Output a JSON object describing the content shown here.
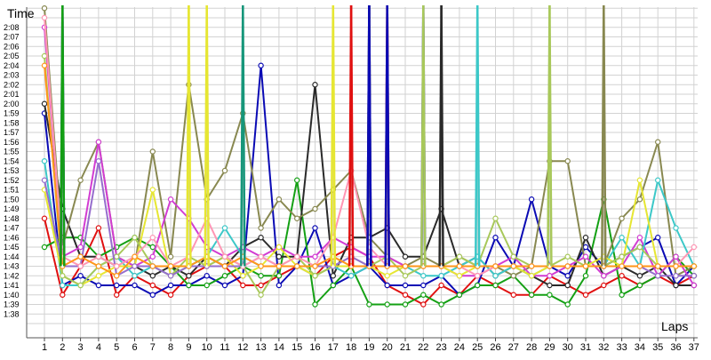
{
  "chart_data": {
    "type": "line",
    "ylabel": "Time",
    "xlabel": "Laps",
    "x": [
      1,
      2,
      3,
      4,
      5,
      6,
      7,
      8,
      9,
      10,
      11,
      12,
      13,
      14,
      15,
      16,
      17,
      18,
      19,
      20,
      21,
      22,
      23,
      24,
      25,
      26,
      27,
      28,
      29,
      30,
      31,
      32,
      33,
      34,
      35,
      36,
      37
    ],
    "y_ticks": [
      "1:38",
      "1:39",
      "1:40",
      "1:41",
      "1:42",
      "1:43",
      "1:44",
      "1:45",
      "1:46",
      "1:47",
      "1:48",
      "1:49",
      "1:50",
      "1:51",
      "1:52",
      "1:53",
      "1:54",
      "1:55",
      "1:56",
      "1:57",
      "1:58",
      "1:59",
      "2:00",
      "2:01",
      "2:02",
      "2:03",
      "2:04",
      "2:05",
      "2:06",
      "2:07",
      "2:08"
    ],
    "ylim_seconds": [
      97.5,
      134.5
    ],
    "xlim": [
      1,
      37
    ],
    "grid": true,
    "legend": "none",
    "series": [
      {
        "color": "#e01010",
        "values": [
          108,
          100,
          103,
          107,
          100,
          102,
          101,
          100,
          102,
          103,
          103,
          101,
          101,
          102,
          103,
          102,
          104,
          105,
          104,
          101,
          100,
          99,
          101,
          100,
          102,
          101,
          100,
          100,
          102,
          101,
          100,
          101,
          102,
          101,
          102,
          101,
          102
        ]
      },
      {
        "color": "#0a0ab4",
        "values": [
          119,
          101,
          102,
          101,
          101,
          101,
          100,
          101,
          101,
          102,
          101,
          102,
          124,
          101,
          103,
          107,
          101,
          102,
          103,
          101,
          101,
          101,
          102,
          100,
          101,
          106,
          103,
          110,
          103,
          102,
          105,
          103,
          104,
          105,
          106,
          101,
          103
        ]
      },
      {
        "color": "#14a014",
        "values": [
          105,
          106,
          106,
          104,
          105,
          106,
          105,
          103,
          101,
          101,
          102,
          103,
          102,
          102,
          112,
          99,
          101,
          103,
          99,
          99,
          99,
          100,
          99,
          100,
          101,
          101,
          102,
          100,
          100,
          99,
          102,
          110,
          100,
          101,
          102,
          104,
          102
        ]
      },
      {
        "color": "#2a2a2a",
        "values": [
          120,
          109,
          104,
          104,
          103,
          103,
          102,
          103,
          102,
          104,
          103,
          105,
          106,
          104,
          104,
          122,
          102,
          106,
          106,
          107,
          104,
          104,
          109,
          103,
          104,
          102,
          103,
          102,
          101,
          101,
          106,
          102,
          103,
          102,
          103,
          101,
          101
        ]
      },
      {
        "color": "#888850",
        "values": [
          130,
          105,
          112,
          116,
          104,
          103,
          115,
          104,
          122,
          110,
          113,
          119,
          107,
          110,
          108,
          109,
          111,
          113,
          106,
          104,
          103,
          104,
          103,
          104,
          103,
          103,
          102,
          103,
          114,
          114,
          103,
          103,
          108,
          110,
          116,
          102,
          103
        ]
      },
      {
        "color": "#d23cd2",
        "values": [
          128,
          104,
          105,
          116,
          104,
          103,
          104,
          110,
          108,
          105,
          104,
          105,
          104,
          105,
          104,
          104,
          106,
          105,
          104,
          104,
          103,
          103,
          103,
          102,
          102,
          103,
          104,
          102,
          102,
          103,
          104,
          102,
          103,
          106,
          102,
          104,
          101
        ]
      },
      {
        "color": "#3cc8c8",
        "values": [
          114,
          101,
          101,
          103,
          104,
          102,
          103,
          102,
          103,
          104,
          107,
          104,
          103,
          103,
          103,
          102,
          103,
          102,
          103,
          103,
          103,
          102,
          102,
          103,
          104,
          102,
          103,
          102,
          103,
          103,
          103,
          103,
          106,
          103,
          112,
          107,
          103
        ]
      },
      {
        "color": "#e6e632",
        "values": [
          111,
          102,
          101,
          102,
          103,
          103,
          111,
          102,
          103,
          103,
          104,
          102,
          103,
          105,
          103,
          102,
          103,
          103,
          103,
          102,
          103,
          103,
          103,
          102,
          103,
          103,
          103,
          102,
          103,
          103,
          103,
          104,
          103,
          112,
          103,
          103,
          103
        ]
      },
      {
        "color": "#a8c85a",
        "values": [
          125,
          102,
          101,
          103,
          104,
          106,
          103,
          102,
          104,
          103,
          104,
          103,
          100,
          103,
          104,
          102,
          103,
          104,
          103,
          104,
          102,
          103,
          103,
          104,
          103,
          108,
          104,
          103,
          103,
          104,
          103,
          103,
          104,
          105,
          103,
          103,
          103
        ]
      },
      {
        "color": "#966ecd",
        "values": [
          112,
          103,
          103,
          114,
          102,
          103,
          103,
          102,
          103,
          103,
          103,
          103,
          104,
          103,
          103,
          103,
          103,
          104,
          103,
          103,
          103,
          103,
          103,
          103,
          103,
          103,
          103,
          103,
          103,
          103,
          103,
          103,
          103,
          103,
          102,
          102,
          102
        ]
      },
      {
        "color": "#ff96b4",
        "values": [
          129,
          104,
          103,
          104,
          103,
          104,
          106,
          103,
          104,
          108,
          104,
          103,
          104,
          103,
          104,
          103,
          106,
          113,
          105,
          103,
          103,
          103,
          103,
          103,
          102,
          103,
          103,
          103,
          103,
          103,
          103,
          103,
          103,
          103,
          103,
          103,
          105
        ]
      },
      {
        "color": "#ff9619",
        "values": [
          124,
          103,
          104,
          103,
          102,
          104,
          103,
          103,
          103,
          104,
          103,
          104,
          103,
          103,
          103,
          103,
          104,
          103,
          103,
          103,
          103,
          103,
          103,
          103,
          103,
          103,
          103,
          103,
          103,
          103,
          103,
          103,
          103,
          103,
          103,
          103,
          103
        ]
      }
    ],
    "spikes": [
      {
        "color": "#0a0ab4",
        "x": [
          2
        ]
      },
      {
        "color": "#14a014",
        "x": [
          2
        ]
      },
      {
        "color": "#e6e632",
        "x": [
          9,
          10
        ]
      },
      {
        "color": "#16967a",
        "x": [
          12
        ]
      },
      {
        "color": "#e6e632",
        "x": [
          17
        ]
      },
      {
        "color": "#e01010",
        "x": [
          18,
          20
        ]
      },
      {
        "color": "#2a2a2a",
        "x": [
          19,
          23
        ]
      },
      {
        "color": "#0a0ab4",
        "x": [
          19,
          20,
          22
        ]
      },
      {
        "color": "#a8c85a",
        "x": [
          22,
          29
        ]
      },
      {
        "color": "#3cc8c8",
        "x": [
          25
        ]
      },
      {
        "color": "#888850",
        "x": [
          32
        ]
      }
    ]
  }
}
